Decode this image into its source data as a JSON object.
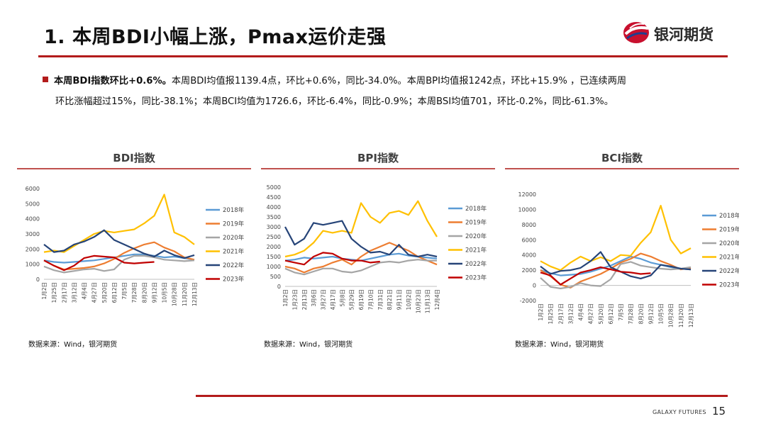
{
  "header": {
    "title": "1. 本周BDI小幅上涨，Pmax运价走强",
    "brand": "银河期货"
  },
  "summary": {
    "lead": "本周BDI指数环比+0.6%。",
    "line1_rest": "本周BDI均值报1139.4点，环比+0.6%，同比-34.0%。本周BPI均值报1242点，环比+15.9% ，已连续两周",
    "line2": "环比涨幅超过15%，同比-38.1%；本周BCI均值为1726.6，环比-6.4%，同比-0.9%；本周BSI均值701，环比-0.2%，同比-61.3%。"
  },
  "footer": {
    "company": "GALAXY FUTURES",
    "page": "15"
  },
  "colors": {
    "2018年": "#5b9bd5",
    "2019年": "#ed7d31",
    "2020年": "#a5a5a5",
    "2021年": "#ffc000",
    "2022年": "#264478",
    "2023年": "#c00000",
    "accent": "#b31b1b"
  },
  "chart_data": [
    {
      "type": "line",
      "title": "BDI指数",
      "source": "数据来源：Wind，银河期货",
      "ylim": [
        0,
        6000
      ],
      "yticks": [
        "6000",
        "5000",
        "4000",
        "3000",
        "2000",
        "1000",
        "0"
      ],
      "x_tick_labels": [
        "1月2日",
        "1月25日",
        "2月17日",
        "3月12日",
        "4月4日",
        "4月27日",
        "5月20日",
        "6月12日",
        "7月5日",
        "7月28日",
        "8月20日",
        "9月12日",
        "10月5日",
        "10月28日",
        "11月20日",
        "12月13日"
      ],
      "series": [
        {
          "name": "2018年",
          "values": [
            1250,
            1150,
            1100,
            1150,
            1200,
            1250,
            1350,
            1450,
            1550,
            1650,
            1650,
            1550,
            1450,
            1500,
            1400,
            1300
          ]
        },
        {
          "name": "2019年",
          "values": [
            1250,
            900,
            650,
            700,
            750,
            850,
            1050,
            1350,
            1750,
            2050,
            2300,
            2450,
            2100,
            1850,
            1450,
            1300
          ]
        },
        {
          "name": "2020年",
          "values": [
            850,
            600,
            450,
            550,
            650,
            700,
            550,
            650,
            1300,
            1550,
            1550,
            1450,
            1300,
            1250,
            1200,
            1250
          ]
        },
        {
          "name": "2021年",
          "values": [
            1800,
            1900,
            1800,
            2200,
            2600,
            3000,
            3200,
            3100,
            3200,
            3300,
            3700,
            4200,
            5600,
            3100,
            2800,
            2300
          ]
        },
        {
          "name": "2022年",
          "values": [
            2300,
            1800,
            1900,
            2300,
            2500,
            2800,
            3250,
            2600,
            2300,
            2000,
            1700,
            1500,
            1900,
            1600,
            1400,
            1600
          ]
        },
        {
          "name": "2023年",
          "values": [
            1250,
            900,
            600,
            900,
            1400,
            1550,
            1500,
            1450,
            1100,
            1050,
            1100,
            1150
          ]
        }
      ]
    },
    {
      "type": "line",
      "title": "BPI指数",
      "source": "数据来源：Wind，银河期货",
      "ylim": [
        0,
        5000
      ],
      "yticks": [
        "5000",
        "4500",
        "4000",
        "3500",
        "3000",
        "2500",
        "2000",
        "1500",
        "1000",
        "500",
        "0"
      ],
      "x_tick_labels": [
        "1月2日",
        "1月23日",
        "2月13日",
        "3月6日",
        "3月27日",
        "4月17日",
        "5月8日",
        "5月29日",
        "6月19日",
        "7月10日",
        "7月31日",
        "8月21日",
        "9月11日",
        "10月2日",
        "10月23日",
        "11月13日",
        "12月4日"
      ],
      "series": [
        {
          "name": "2018年",
          "values": [
            1300,
            1350,
            1450,
            1400,
            1450,
            1500,
            1400,
            1350,
            1300,
            1400,
            1500,
            1600,
            1650,
            1550,
            1500,
            1450,
            1400
          ]
        },
        {
          "name": "2019年",
          "values": [
            1000,
            900,
            700,
            900,
            1000,
            1200,
            1350,
            1100,
            1500,
            1800,
            2000,
            2200,
            2000,
            1800,
            1500,
            1300,
            1100
          ]
        },
        {
          "name": "2020年",
          "values": [
            900,
            700,
            600,
            750,
            900,
            900,
            750,
            700,
            800,
            1000,
            1200,
            1250,
            1200,
            1300,
            1350,
            1300,
            1300
          ]
        },
        {
          "name": "2021年",
          "values": [
            1500,
            1600,
            1800,
            2200,
            2800,
            2700,
            2800,
            2700,
            4200,
            3500,
            3200,
            3700,
            3800,
            3600,
            4300,
            3300,
            2500
          ]
        },
        {
          "name": "2022年",
          "values": [
            3000,
            2100,
            2400,
            3200,
            3100,
            3200,
            3300,
            2400,
            2000,
            1700,
            1750,
            1600,
            2100,
            1600,
            1500,
            1600,
            1500
          ]
        },
        {
          "name": "2023年",
          "values": [
            1300,
            1200,
            1100,
            1500,
            1700,
            1650,
            1400,
            1300,
            1300,
            1200,
            1250
          ]
        }
      ]
    },
    {
      "type": "line",
      "title": "BCI指数",
      "source": "数据来源：Wind，银河期货",
      "ylim": [
        -2000,
        12000
      ],
      "yticks": [
        "12000",
        "10000",
        "8000",
        "6000",
        "4000",
        "2000",
        "0",
        "-2000"
      ],
      "x_tick_labels": [
        "1月2日",
        "1月25日",
        "2月17日",
        "3月12日",
        "4月4日",
        "4月27日",
        "5月20日",
        "6月12日",
        "7月5日",
        "7月28日",
        "8月20日",
        "9月12日",
        "10月5日",
        "10月28日",
        "11月20日",
        "12月13日"
      ],
      "series": [
        {
          "name": "2018年",
          "values": [
            2000,
            1600,
            1300,
            1400,
            1500,
            1800,
            2200,
            2600,
            3200,
            3800,
            3500,
            3000,
            2700,
            2400,
            2200,
            2100
          ]
        },
        {
          "name": "2019年",
          "values": [
            2000,
            1200,
            100,
            -300,
            500,
            1000,
            1500,
            2200,
            3000,
            3500,
            4200,
            3800,
            3200,
            2700,
            2100,
            2300
          ]
        },
        {
          "name": "2020年",
          "values": [
            1000,
            -200,
            -400,
            -200,
            300,
            0,
            -100,
            800,
            2800,
            3100,
            2600,
            2400,
            2200,
            2100,
            2200,
            2400
          ]
        },
        {
          "name": "2021年",
          "values": [
            3200,
            2500,
            2000,
            3000,
            3800,
            3200,
            3700,
            3200,
            4000,
            3900,
            5600,
            7000,
            10500,
            6000,
            4200,
            4900
          ]
        },
        {
          "name": "2022年",
          "values": [
            2500,
            1500,
            1900,
            2000,
            2300,
            3200,
            4400,
            2400,
            1800,
            1200,
            900,
            1300,
            2700,
            2500,
            2200,
            2100
          ]
        },
        {
          "name": "2023年",
          "values": [
            1700,
            1300,
            100,
            900,
            1700,
            2000,
            2400,
            2100,
            1800,
            1700,
            1500,
            1600
          ]
        }
      ]
    }
  ]
}
